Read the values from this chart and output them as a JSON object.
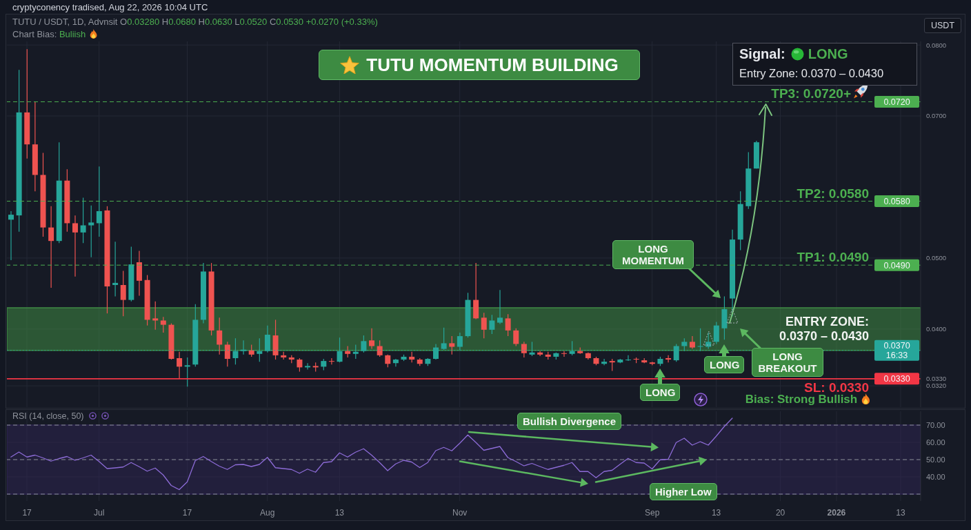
{
  "chart_data": [
    {
      "type": "candlestick",
      "title": "TUTU MOMENTUM BUILDING",
      "ylabel": "USDT",
      "categories": [
        null,
        null,
        null,
        null,
        null,
        null,
        null,
        null,
        null,
        null,
        null,
        null,
        null,
        null,
        null,
        null,
        null,
        null,
        null,
        null,
        null,
        null,
        null,
        null,
        null,
        null,
        null,
        null,
        null,
        null,
        null,
        null,
        null,
        null,
        null,
        null,
        null,
        null,
        null,
        null,
        null,
        null,
        null,
        null,
        null,
        null,
        null,
        null,
        null,
        null,
        null,
        null,
        null,
        null,
        null,
        null,
        null,
        null,
        null,
        null,
        null,
        null,
        null,
        null,
        null,
        null,
        null,
        null,
        null,
        null,
        null,
        null,
        null,
        null,
        null,
        null,
        null,
        null,
        null,
        null,
        null,
        null,
        null,
        null,
        null,
        null,
        null,
        null,
        null,
        null,
        null,
        null,
        null,
        null,
        null,
        null,
        null,
        null,
        null,
        null,
        null,
        null,
        null,
        null,
        null,
        null,
        null,
        null,
        null,
        null,
        null,
        null,
        null,
        null
      ],
      "ohlc": [
        [
          0.0554,
          0.0566,
          0.0497,
          0.0561
        ],
        [
          0.056,
          0.0765,
          0.0537,
          0.0705
        ],
        [
          0.0705,
          0.0794,
          0.064,
          0.066
        ],
        [
          0.066,
          0.072,
          0.0594,
          0.0617
        ],
        [
          0.0617,
          0.0648,
          0.053,
          0.0543
        ],
        [
          0.0543,
          0.0573,
          0.0458,
          0.0524
        ],
        [
          0.0524,
          0.0663,
          0.0521,
          0.0609
        ],
        [
          0.0609,
          0.0625,
          0.0537,
          0.0549
        ],
        [
          0.0549,
          0.056,
          0.0474,
          0.0536
        ],
        [
          0.0536,
          0.0585,
          0.0521,
          0.0546
        ],
        [
          0.0546,
          0.0574,
          0.0501,
          0.055
        ],
        [
          0.0549,
          0.0629,
          0.053,
          0.0566
        ],
        [
          0.0567,
          0.0573,
          0.0422,
          0.046
        ],
        [
          0.0462,
          0.0523,
          0.0446,
          0.0465
        ],
        [
          0.0462,
          0.0482,
          0.0418,
          0.0441
        ],
        [
          0.0441,
          0.0516,
          0.0439,
          0.0491
        ],
        [
          0.0494,
          0.051,
          0.0447,
          0.0468
        ],
        [
          0.0469,
          0.0476,
          0.0405,
          0.0413
        ],
        [
          0.0415,
          0.0439,
          0.0399,
          0.0412
        ],
        [
          0.0412,
          0.0417,
          0.0395,
          0.0406
        ],
        [
          0.0406,
          0.0408,
          0.0357,
          0.0358
        ],
        [
          0.0359,
          0.0368,
          0.033,
          0.0347
        ],
        [
          0.0347,
          0.036,
          0.0319,
          0.0349
        ],
        [
          0.035,
          0.0435,
          0.0347,
          0.0413
        ],
        [
          0.0413,
          0.0493,
          0.0408,
          0.0481
        ],
        [
          0.0481,
          0.0493,
          0.0391,
          0.0398
        ],
        [
          0.0398,
          0.0416,
          0.0364,
          0.0378
        ],
        [
          0.0378,
          0.0382,
          0.0347,
          0.0358
        ],
        [
          0.0359,
          0.0387,
          0.035,
          0.0369
        ],
        [
          0.0369,
          0.0384,
          0.0364,
          0.0371
        ],
        [
          0.037,
          0.0378,
          0.0361,
          0.0364
        ],
        [
          0.0365,
          0.0387,
          0.0354,
          0.0369
        ],
        [
          0.0369,
          0.0405,
          0.0367,
          0.0392
        ],
        [
          0.0391,
          0.0413,
          0.0357,
          0.0363
        ],
        [
          0.0363,
          0.0368,
          0.0357,
          0.036
        ],
        [
          0.036,
          0.0363,
          0.0352,
          0.0357
        ],
        [
          0.0357,
          0.0359,
          0.034,
          0.0346
        ],
        [
          0.0346,
          0.0352,
          0.0343,
          0.0348
        ],
        [
          0.0348,
          0.0353,
          0.034,
          0.0346
        ],
        [
          0.0347,
          0.0358,
          0.0342,
          0.0355
        ],
        [
          0.0355,
          0.0359,
          0.035,
          0.0354
        ],
        [
          0.0354,
          0.0388,
          0.0353,
          0.0369
        ],
        [
          0.0369,
          0.0376,
          0.036,
          0.0365
        ],
        [
          0.0365,
          0.0378,
          0.0358,
          0.0368
        ],
        [
          0.0369,
          0.0391,
          0.0367,
          0.0383
        ],
        [
          0.0384,
          0.0401,
          0.0372,
          0.0376
        ],
        [
          0.0376,
          0.0384,
          0.0361,
          0.0363
        ],
        [
          0.0363,
          0.0364,
          0.0346,
          0.0351
        ],
        [
          0.0352,
          0.0358,
          0.0347,
          0.0357
        ],
        [
          0.0357,
          0.0364,
          0.0355,
          0.0361
        ],
        [
          0.0361,
          0.0368,
          0.0353,
          0.0357
        ],
        [
          0.0357,
          0.0359,
          0.0348,
          0.0351
        ],
        [
          0.0351,
          0.0359,
          0.0348,
          0.0358
        ],
        [
          0.0358,
          0.0379,
          0.0357,
          0.0374
        ],
        [
          0.0372,
          0.0402,
          0.0371,
          0.038
        ],
        [
          0.038,
          0.039,
          0.0364,
          0.0375
        ],
        [
          0.0375,
          0.0395,
          0.037,
          0.039
        ],
        [
          0.039,
          0.0451,
          0.0388,
          0.0441
        ],
        [
          0.0441,
          0.0493,
          0.0414,
          0.0415
        ],
        [
          0.0416,
          0.0423,
          0.0387,
          0.0399
        ],
        [
          0.0399,
          0.042,
          0.0393,
          0.0412
        ],
        [
          0.0409,
          0.0455,
          0.0407,
          0.0416
        ],
        [
          0.0415,
          0.0421,
          0.039,
          0.0398
        ],
        [
          0.0398,
          0.0401,
          0.0376,
          0.0379
        ],
        [
          0.0379,
          0.0382,
          0.036,
          0.0366
        ],
        [
          0.0364,
          0.0382,
          0.0362,
          0.0367
        ],
        [
          0.0367,
          0.0369,
          0.0362,
          0.0364
        ],
        [
          0.0364,
          0.0368,
          0.0357,
          0.0361
        ],
        [
          0.0361,
          0.0367,
          0.0357,
          0.0366
        ],
        [
          0.0366,
          0.0369,
          0.0361,
          0.0365
        ],
        [
          0.0365,
          0.0383,
          0.0363,
          0.0369
        ],
        [
          0.0369,
          0.0374,
          0.0365,
          0.0366
        ],
        [
          0.0366,
          0.0367,
          0.0357,
          0.0359
        ],
        [
          0.0359,
          0.0361,
          0.0349,
          0.0351
        ],
        [
          0.0351,
          0.0358,
          0.0349,
          0.0354
        ],
        [
          0.0355,
          0.0358,
          0.0341,
          0.0353
        ],
        [
          0.0353,
          0.0358,
          0.0352,
          0.0357
        ],
        [
          0.0356,
          0.0363,
          0.0355,
          0.0357
        ],
        [
          0.0358,
          0.036,
          0.0352,
          0.0357
        ],
        [
          0.0356,
          0.0359,
          0.0352,
          0.0353
        ],
        [
          0.0353,
          0.0354,
          0.0349,
          0.0351
        ],
        [
          0.0351,
          0.0361,
          0.0348,
          0.0358
        ],
        [
          0.0359,
          0.0363,
          0.0353,
          0.0357
        ],
        [
          0.0356,
          0.0379,
          0.0354,
          0.0376
        ],
        [
          0.0376,
          0.0387,
          0.0369,
          0.0382
        ],
        [
          0.0382,
          0.039,
          0.0372,
          0.0374
        ],
        [
          0.0375,
          0.0401,
          0.0369,
          0.0376
        ],
        [
          0.0375,
          0.0395,
          0.0372,
          0.0382
        ],
        [
          0.0382,
          0.041,
          0.0379,
          0.0405
        ],
        [
          0.0401,
          0.0446,
          0.0385,
          0.0428
        ],
        [
          0.0443,
          0.054,
          0.0418,
          0.0526
        ],
        [
          0.0526,
          0.0594,
          0.0511,
          0.0576
        ],
        [
          0.0573,
          0.0649,
          0.0569,
          0.0626
        ],
        [
          0.0626,
          0.0665,
          0.0626,
          0.0663
        ],
        null,
        null,
        null,
        null,
        null,
        null,
        null,
        null,
        null,
        null,
        null,
        null,
        null,
        null,
        null,
        null,
        null,
        null,
        null,
        null
      ],
      "colors": [
        "#26a69a",
        "#26a69a",
        "#ef5350",
        "#ef5350",
        "#ef5350",
        "#ef5350",
        "#26a69a",
        "#ef5350",
        "#ef5350",
        "#26a69a",
        "#26a69a",
        "#26a69a",
        "#ef5350",
        "#26a69a",
        "#ef5350",
        "#26a69a",
        "#ef5350",
        "#ef5350",
        "#ef5350",
        "#ef5350",
        "#ef5350",
        "#ef5350",
        "#26a69a",
        "#26a69a",
        "#26a69a",
        "#ef5350",
        "#ef5350",
        "#ef5350",
        "#26a69a",
        "#26a69a",
        "#ef5350",
        "#26a69a",
        "#26a69a",
        "#ef5350",
        "#ef5350",
        "#ef5350",
        "#ef5350",
        "#26a69a",
        "#ef5350",
        "#26a69a",
        "#ef5350",
        "#26a69a",
        "#ef5350",
        "#26a69a",
        "#26a69a",
        "#ef5350",
        "#ef5350",
        "#ef5350",
        "#26a69a",
        "#26a69a",
        "#ef5350",
        "#ef5350",
        "#26a69a",
        "#26a69a",
        "#26a69a",
        "#ef5350",
        "#26a69a",
        "#26a69a",
        "#ef5350",
        "#ef5350",
        "#26a69a",
        "#26a69a",
        "#ef5350",
        "#ef5350",
        "#ef5350",
        "#26a69a",
        "#ef5350",
        "#ef5350",
        "#26a69a",
        "#ef5350",
        "#26a69a",
        "#ef5350",
        "#ef5350",
        "#ef5350",
        "#26a69a",
        "#ef5350",
        "#26a69a",
        "#26a69a",
        "#ef5350",
        "#ef5350",
        "#ef5350",
        "#26a69a",
        "#ef5350",
        "#26a69a",
        "#26a69a",
        "#ef5350",
        "#26a69a",
        "#26a69a",
        "#26a69a",
        "#26a69a",
        "#26a69a",
        "#26a69a",
        "#26a69a",
        "#26a69a",
        null,
        null,
        null,
        null,
        null,
        null,
        null,
        null,
        null,
        null,
        null,
        null,
        null,
        null,
        null,
        null,
        null,
        null,
        null,
        null
      ],
      "ylim": [
        0.029,
        0.0805
      ],
      "yticks": [
        {
          "value": 0.032,
          "label": "0.0320"
        },
        {
          "value": 0.033,
          "label": "0.0330"
        },
        {
          "value": 0.04,
          "label": "0.0400"
        },
        {
          "value": 0.05,
          "label": "0.0500"
        },
        {
          "value": 0.07,
          "label": "0.0700"
        },
        {
          "value": 0.08,
          "label": "0.0800"
        }
      ],
      "grid": true,
      "tick_labels": "y",
      "ref_lines": [
        {
          "axis": "y",
          "value": 0.072,
          "label": "TP3: 0.0720+",
          "color": "#4caf50",
          "line_style": "dashed"
        },
        {
          "axis": "y",
          "value": 0.058,
          "label": "TP2: 0.0580",
          "color": "#4caf50",
          "line_style": "dashed"
        },
        {
          "axis": "y",
          "value": 0.049,
          "label": "TP1: 0.0490",
          "color": "#4caf50",
          "line_style": "dashed"
        },
        {
          "axis": "y",
          "value": 0.037,
          "color": "#26a69a",
          "line_style": "dotted"
        },
        {
          "axis": "y",
          "value": 0.033,
          "label": "SL: 0.0330",
          "color": "#f23645",
          "line_style": "solid"
        }
      ],
      "bands": [
        {
          "axis": "y",
          "from": 0.037,
          "to": 0.043,
          "label": "ENTRY ZONE:\n0.0370 – 0.0430",
          "color": "#3f8a44"
        }
      ],
      "annotations": [
        "cryptyconency tradised, Aug 22, 2026 10:04 UTC",
        "TUTU / USDT, 1D, Advnsit O0.03280 H0.0680 H0.0630 L0.0520 C0.0530 +0.0270 (+0.33%)",
        "Chart Bias: Buliish",
        "Signal: LONG",
        "Entry Zone: 0.0370 – 0.0430",
        "Bias: Strong Bullish",
        "LONG",
        "LONG MOMENTUM",
        "LONG",
        "LONG BREAKOUT",
        {
          "text": "0.0720",
          "y": 0.072
        },
        {
          "text": "0.0580",
          "y": 0.058
        },
        {
          "text": "0.0490",
          "y": 0.049
        },
        {
          "text": "0.0370",
          "y": 0.037
        },
        "16:33",
        {
          "text": "0.0330",
          "y": 0.033
        }
      ]
    },
    {
      "type": "line",
      "title": "RSI (14, close, 50)",
      "categories": [
        null,
        null,
        "17",
        null,
        null,
        null,
        null,
        null,
        null,
        null,
        null,
        "Jul",
        null,
        null,
        null,
        null,
        null,
        null,
        null,
        null,
        null,
        null,
        "17",
        null,
        null,
        null,
        null,
        null,
        null,
        null,
        null,
        null,
        "Aug",
        null,
        null,
        null,
        null,
        null,
        null,
        null,
        null,
        "13",
        null,
        null,
        null,
        null,
        null,
        null,
        null,
        null,
        null,
        null,
        null,
        null,
        null,
        null,
        "Nov",
        null,
        null,
        null,
        null,
        null,
        null,
        null,
        null,
        null,
        null,
        null,
        null,
        null,
        null,
        null,
        null,
        null,
        null,
        null,
        null,
        null,
        null,
        null,
        "Sep",
        null,
        null,
        null,
        null,
        null,
        null,
        null,
        "13",
        null,
        null,
        null,
        null,
        null,
        null,
        null,
        "20",
        null,
        null,
        null,
        null,
        null,
        null,
        "2026",
        null,
        null,
        null,
        null,
        null,
        null,
        null,
        "13",
        null,
        null
      ],
      "series": [
        {
          "color": "#8c6bd6",
          "values": [
            51.5,
            54.4,
            51.5,
            52.6,
            51.0,
            49.1,
            50.6,
            51.8,
            49.6,
            51.0,
            52.6,
            48.9,
            44.8,
            45.2,
            45.7,
            48.3,
            45.9,
            43.3,
            45.1,
            41.1,
            35.0,
            32.6,
            37.1,
            49.4,
            51.8,
            48.9,
            46.2,
            44.3,
            47.0,
            47.2,
            46.0,
            47.2,
            51.3,
            45.3,
            44.8,
            44.3,
            42.1,
            44.5,
            42.7,
            48.3,
            48.8,
            53.9,
            51.5,
            54.3,
            56.3,
            52.6,
            48.3,
            43.6,
            47.5,
            49.6,
            48.6,
            45.4,
            48.3,
            55.2,
            57.1,
            55.1,
            59.5,
            64.3,
            60.0,
            55.4,
            56.5,
            57.6,
            51.2,
            48.9,
            46.4,
            47.8,
            46.0,
            44.3,
            45.5,
            46.7,
            48.3,
            43.1,
            43.1,
            39.5,
            43.1,
            43.8,
            47.3,
            50.7,
            48.3,
            48.0,
            44.6,
            49.9,
            50.2,
            59.9,
            62.4,
            58.4,
            60.4,
            58.4,
            63.6,
            69.2,
            74.0,
            null,
            null,
            null,
            null,
            null,
            null,
            null,
            null,
            null,
            null,
            null,
            null,
            null,
            null,
            null,
            null,
            null,
            null,
            null,
            null,
            null,
            null,
            null
          ]
        }
      ],
      "ylim": [
        26,
        78
      ],
      "yticks": [
        {
          "value": 40,
          "label": "40.00"
        },
        {
          "value": 50,
          "label": "50.00"
        },
        {
          "value": 60,
          "label": "60.00"
        },
        {
          "value": 70,
          "label": "70.00"
        }
      ],
      "grid": true,
      "ref_lines": [
        {
          "axis": "y",
          "value": 70,
          "line_style": "dashed"
        },
        {
          "axis": "y",
          "value": 50,
          "line_style": "dashed"
        },
        {
          "axis": "y",
          "value": 30,
          "line_style": "dashed"
        }
      ],
      "bands": [
        {
          "axis": "y",
          "from": 30,
          "to": 70,
          "color": "#2e2550"
        }
      ],
      "annotations": [
        "Bullish Divergence",
        "Higher Low"
      ]
    }
  ]
}
